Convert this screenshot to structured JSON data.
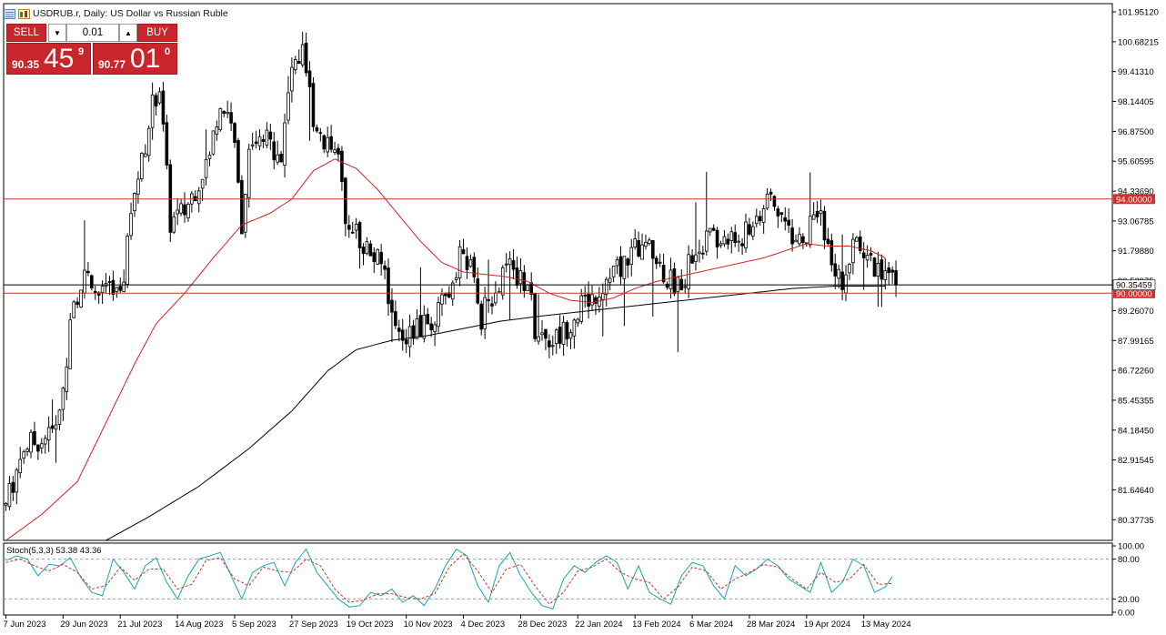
{
  "window": {
    "title": "USDRUB.r, Daily:  US Dollar vs Russian Ruble"
  },
  "trade_panel": {
    "sell_label": "SELL",
    "buy_label": "BUY",
    "lot_value": "0.01",
    "bid": {
      "main": "90.35",
      "big": "45",
      "sup": "9"
    },
    "ask": {
      "main": "90.77",
      "big": "01",
      "sup": "0"
    }
  },
  "icons": [
    "chart-list-icon",
    "chart-window-icon",
    "lot-down-icon",
    "lot-up-icon"
  ],
  "colors": {
    "candles": "#000000",
    "ma_fast": "#d32323",
    "ma_slow": "#000000",
    "level_line": "#c0392b",
    "price_line": "#000000",
    "stoch_main": "#1aa3b5",
    "stoch_signal": "#c0392b",
    "tag_bg": "#d0312d"
  },
  "chart_data": [
    {
      "type": "candlestick",
      "symbol": "USDRUB.r",
      "timeframe": "Daily",
      "ylim": [
        79.5,
        102.3
      ],
      "yticks": [
        "101.95120",
        "100.68215",
        "99.41310",
        "98.14405",
        "96.87500",
        "95.60595",
        "94.33690",
        "93.06785",
        "91.79880",
        "90.52975",
        "89.26070",
        "87.99165",
        "86.72260",
        "85.45355",
        "84.18450",
        "82.91545",
        "81.64640",
        "80.37735"
      ],
      "xticks": [
        "7 Jun 2023",
        "29 Jun 2023",
        "21 Jul 2023",
        "14 Aug 2023",
        "5 Sep 2023",
        "27 Sep 2023",
        "19 Oct 2023",
        "10 Nov 2023",
        "4 Dec 2023",
        "28 Dec 2023",
        "22 Jan 2024",
        "13 Feb 2024",
        "6 Mar 2024",
        "28 Mar 2024",
        "19 Apr 2024",
        "13 May 2024"
      ],
      "tick_indices": [
        0,
        16,
        32,
        48,
        64,
        80,
        96,
        112,
        128,
        144,
        160,
        176,
        192,
        208,
        224,
        240
      ],
      "levels": [
        {
          "value": 94.0,
          "label": "94.00000"
        },
        {
          "value": 90.0,
          "label": "90.00000"
        }
      ],
      "current_price": 90.354,
      "current_price_label": "90.35459",
      "ohlc_anchors": [
        [
          0,
          81.0
        ],
        [
          5,
          83.5
        ],
        [
          10,
          83.8
        ],
        [
          14,
          84.2
        ],
        [
          16,
          86.0
        ],
        [
          18,
          88.5
        ],
        [
          20,
          90.0
        ],
        [
          22,
          91.0
        ],
        [
          24,
          89.8
        ],
        [
          28,
          90.2
        ],
        [
          31,
          90.0
        ],
        [
          33,
          91.0
        ],
        [
          35,
          93.5
        ],
        [
          38,
          95.5
        ],
        [
          41,
          98.0
        ],
        [
          43,
          98.8
        ],
        [
          46,
          93.0
        ],
        [
          50,
          93.5
        ],
        [
          54,
          94.8
        ],
        [
          57,
          96.0
        ],
        [
          60,
          98.0
        ],
        [
          63,
          97.5
        ],
        [
          66,
          93.0
        ],
        [
          68,
          95.8
        ],
        [
          72,
          96.5
        ],
        [
          77,
          96.0
        ],
        [
          80,
          99.5
        ],
        [
          83,
          100.2
        ],
        [
          86,
          97.5
        ],
        [
          89,
          96.5
        ],
        [
          92,
          96.5
        ],
        [
          95,
          93.5
        ],
        [
          99,
          92.3
        ],
        [
          103,
          91.5
        ],
        [
          106,
          91.0
        ],
        [
          108,
          89.0
        ],
        [
          112,
          88.2
        ],
        [
          116,
          88.5
        ],
        [
          120,
          88.8
        ],
        [
          124,
          90.0
        ],
        [
          127,
          91.8
        ],
        [
          130,
          91.0
        ],
        [
          133,
          89.0
        ],
        [
          136,
          90.0
        ],
        [
          140,
          91.2
        ],
        [
          143,
          90.5
        ],
        [
          146,
          90.5
        ],
        [
          148,
          88.5
        ],
        [
          152,
          88.0
        ],
        [
          155,
          88.2
        ],
        [
          158,
          88.8
        ],
        [
          161,
          89.5
        ],
        [
          165,
          90.0
        ],
        [
          168,
          90.5
        ],
        [
          171,
          91.0
        ],
        [
          174,
          91.5
        ],
        [
          177,
          92.0
        ],
        [
          180,
          91.8
        ],
        [
          183,
          91.2
        ],
        [
          186,
          90.5
        ],
        [
          189,
          90.5
        ],
        [
          192,
          91.5
        ],
        [
          196,
          92.3
        ],
        [
          200,
          92.2
        ],
        [
          204,
          92.3
        ],
        [
          207,
          92.5
        ],
        [
          211,
          93.5
        ],
        [
          214,
          93.8
        ],
        [
          217,
          93.3
        ],
        [
          220,
          92.5
        ],
        [
          223,
          92.0
        ],
        [
          225,
          92.8
        ],
        [
          228,
          93.5
        ],
        [
          231,
          90.8
        ],
        [
          234,
          90.5
        ],
        [
          236,
          91.5
        ],
        [
          239,
          92.3
        ],
        [
          242,
          91.3
        ],
        [
          245,
          90.9
        ],
        [
          248,
          90.5
        ],
        [
          250,
          90.35
        ]
      ],
      "ma_fast_anchors": [
        [
          0,
          79.5
        ],
        [
          10,
          80.6
        ],
        [
          20,
          82.0
        ],
        [
          28,
          84.5
        ],
        [
          36,
          87.0
        ],
        [
          42,
          88.7
        ],
        [
          50,
          90.0
        ],
        [
          58,
          91.5
        ],
        [
          66,
          92.9
        ],
        [
          74,
          93.4
        ],
        [
          80,
          94.0
        ],
        [
          86,
          95.2
        ],
        [
          92,
          95.7
        ],
        [
          98,
          95.3
        ],
        [
          104,
          94.4
        ],
        [
          110,
          93.3
        ],
        [
          116,
          92.2
        ],
        [
          122,
          91.3
        ],
        [
          128,
          90.9
        ],
        [
          134,
          90.8
        ],
        [
          140,
          90.7
        ],
        [
          146,
          90.5
        ],
        [
          152,
          90.0
        ],
        [
          158,
          89.7
        ],
        [
          164,
          89.6
        ],
        [
          170,
          89.8
        ],
        [
          176,
          90.2
        ],
        [
          182,
          90.5
        ],
        [
          188,
          90.7
        ],
        [
          194,
          90.9
        ],
        [
          200,
          91.1
        ],
        [
          206,
          91.3
        ],
        [
          212,
          91.5
        ],
        [
          218,
          91.8
        ],
        [
          224,
          92.1
        ],
        [
          230,
          92.0
        ],
        [
          236,
          92.0
        ],
        [
          242,
          91.8
        ],
        [
          246,
          91.5
        ]
      ],
      "ma_slow_anchors": [
        [
          28,
          79.5
        ],
        [
          40,
          80.5
        ],
        [
          54,
          81.8
        ],
        [
          68,
          83.4
        ],
        [
          80,
          85.0
        ],
        [
          90,
          86.7
        ],
        [
          98,
          87.6
        ],
        [
          108,
          88.0
        ],
        [
          118,
          88.2
        ],
        [
          128,
          88.5
        ],
        [
          138,
          88.8
        ],
        [
          148,
          89.0
        ],
        [
          160,
          89.2
        ],
        [
          172,
          89.4
        ],
        [
          184,
          89.6
        ],
        [
          196,
          89.8
        ],
        [
          208,
          90.0
        ],
        [
          220,
          90.2
        ],
        [
          232,
          90.3
        ],
        [
          246,
          90.3
        ]
      ],
      "xlabel": "",
      "ylabel": ""
    },
    {
      "type": "line",
      "name": "Stoch(5,3,3) 53.38 43.36",
      "ylim": [
        0,
        100
      ],
      "yticks": [
        "100.00",
        "80.00",
        "20.00",
        "0.00"
      ],
      "levels": [
        80,
        20
      ],
      "main_anchors": [
        [
          0,
          78
        ],
        [
          3,
          85
        ],
        [
          6,
          80
        ],
        [
          9,
          55
        ],
        [
          12,
          72
        ],
        [
          15,
          70
        ],
        [
          18,
          82
        ],
        [
          21,
          52
        ],
        [
          24,
          30
        ],
        [
          27,
          25
        ],
        [
          30,
          80
        ],
        [
          33,
          60
        ],
        [
          36,
          35
        ],
        [
          39,
          70
        ],
        [
          42,
          82
        ],
        [
          45,
          45
        ],
        [
          48,
          20
        ],
        [
          51,
          55
        ],
        [
          54,
          80
        ],
        [
          57,
          85
        ],
        [
          60,
          90
        ],
        [
          63,
          55
        ],
        [
          66,
          20
        ],
        [
          69,
          60
        ],
        [
          72,
          70
        ],
        [
          75,
          75
        ],
        [
          78,
          40
        ],
        [
          81,
          75
        ],
        [
          84,
          95
        ],
        [
          87,
          60
        ],
        [
          90,
          40
        ],
        [
          93,
          20
        ],
        [
          96,
          8
        ],
        [
          99,
          10
        ],
        [
          102,
          30
        ],
        [
          105,
          25
        ],
        [
          108,
          35
        ],
        [
          111,
          15
        ],
        [
          114,
          25
        ],
        [
          117,
          10
        ],
        [
          120,
          35
        ],
        [
          123,
          70
        ],
        [
          126,
          95
        ],
        [
          129,
          85
        ],
        [
          132,
          40
        ],
        [
          135,
          15
        ],
        [
          138,
          70
        ],
        [
          141,
          90
        ],
        [
          144,
          55
        ],
        [
          147,
          30
        ],
        [
          150,
          10
        ],
        [
          153,
          5
        ],
        [
          156,
          50
        ],
        [
          159,
          70
        ],
        [
          162,
          60
        ],
        [
          165,
          75
        ],
        [
          168,
          85
        ],
        [
          171,
          75
        ],
        [
          174,
          35
        ],
        [
          177,
          70
        ],
        [
          180,
          30
        ],
        [
          183,
          20
        ],
        [
          186,
          12
        ],
        [
          189,
          55
        ],
        [
          192,
          75
        ],
        [
          195,
          70
        ],
        [
          198,
          40
        ],
        [
          201,
          20
        ],
        [
          204,
          70
        ],
        [
          207,
          55
        ],
        [
          210,
          65
        ],
        [
          213,
          80
        ],
        [
          216,
          70
        ],
        [
          219,
          50
        ],
        [
          222,
          40
        ],
        [
          225,
          30
        ],
        [
          228,
          75
        ],
        [
          231,
          30
        ],
        [
          234,
          45
        ],
        [
          237,
          80
        ],
        [
          240,
          70
        ],
        [
          243,
          30
        ],
        [
          246,
          38
        ],
        [
          248,
          53.38
        ]
      ],
      "signal_anchors": [
        [
          0,
          75
        ],
        [
          4,
          80
        ],
        [
          8,
          70
        ],
        [
          12,
          62
        ],
        [
          16,
          72
        ],
        [
          20,
          60
        ],
        [
          24,
          35
        ],
        [
          28,
          40
        ],
        [
          32,
          68
        ],
        [
          36,
          48
        ],
        [
          40,
          65
        ],
        [
          44,
          65
        ],
        [
          48,
          35
        ],
        [
          52,
          42
        ],
        [
          56,
          78
        ],
        [
          60,
          82
        ],
        [
          64,
          50
        ],
        [
          68,
          40
        ],
        [
          72,
          68
        ],
        [
          76,
          62
        ],
        [
          80,
          60
        ],
        [
          84,
          80
        ],
        [
          88,
          70
        ],
        [
          92,
          35
        ],
        [
          96,
          15
        ],
        [
          100,
          18
        ],
        [
          104,
          28
        ],
        [
          108,
          28
        ],
        [
          112,
          22
        ],
        [
          116,
          20
        ],
        [
          120,
          28
        ],
        [
          124,
          68
        ],
        [
          128,
          88
        ],
        [
          132,
          62
        ],
        [
          136,
          30
        ],
        [
          140,
          65
        ],
        [
          144,
          72
        ],
        [
          148,
          40
        ],
        [
          152,
          12
        ],
        [
          156,
          30
        ],
        [
          160,
          62
        ],
        [
          164,
          68
        ],
        [
          168,
          80
        ],
        [
          172,
          60
        ],
        [
          176,
          50
        ],
        [
          180,
          45
        ],
        [
          184,
          20
        ],
        [
          188,
          38
        ],
        [
          192,
          68
        ],
        [
          196,
          62
        ],
        [
          200,
          35
        ],
        [
          204,
          50
        ],
        [
          208,
          60
        ],
        [
          212,
          72
        ],
        [
          216,
          68
        ],
        [
          220,
          50
        ],
        [
          224,
          35
        ],
        [
          228,
          60
        ],
        [
          232,
          45
        ],
        [
          236,
          50
        ],
        [
          240,
          72
        ],
        [
          244,
          42
        ],
        [
          248,
          43.36
        ]
      ]
    }
  ]
}
